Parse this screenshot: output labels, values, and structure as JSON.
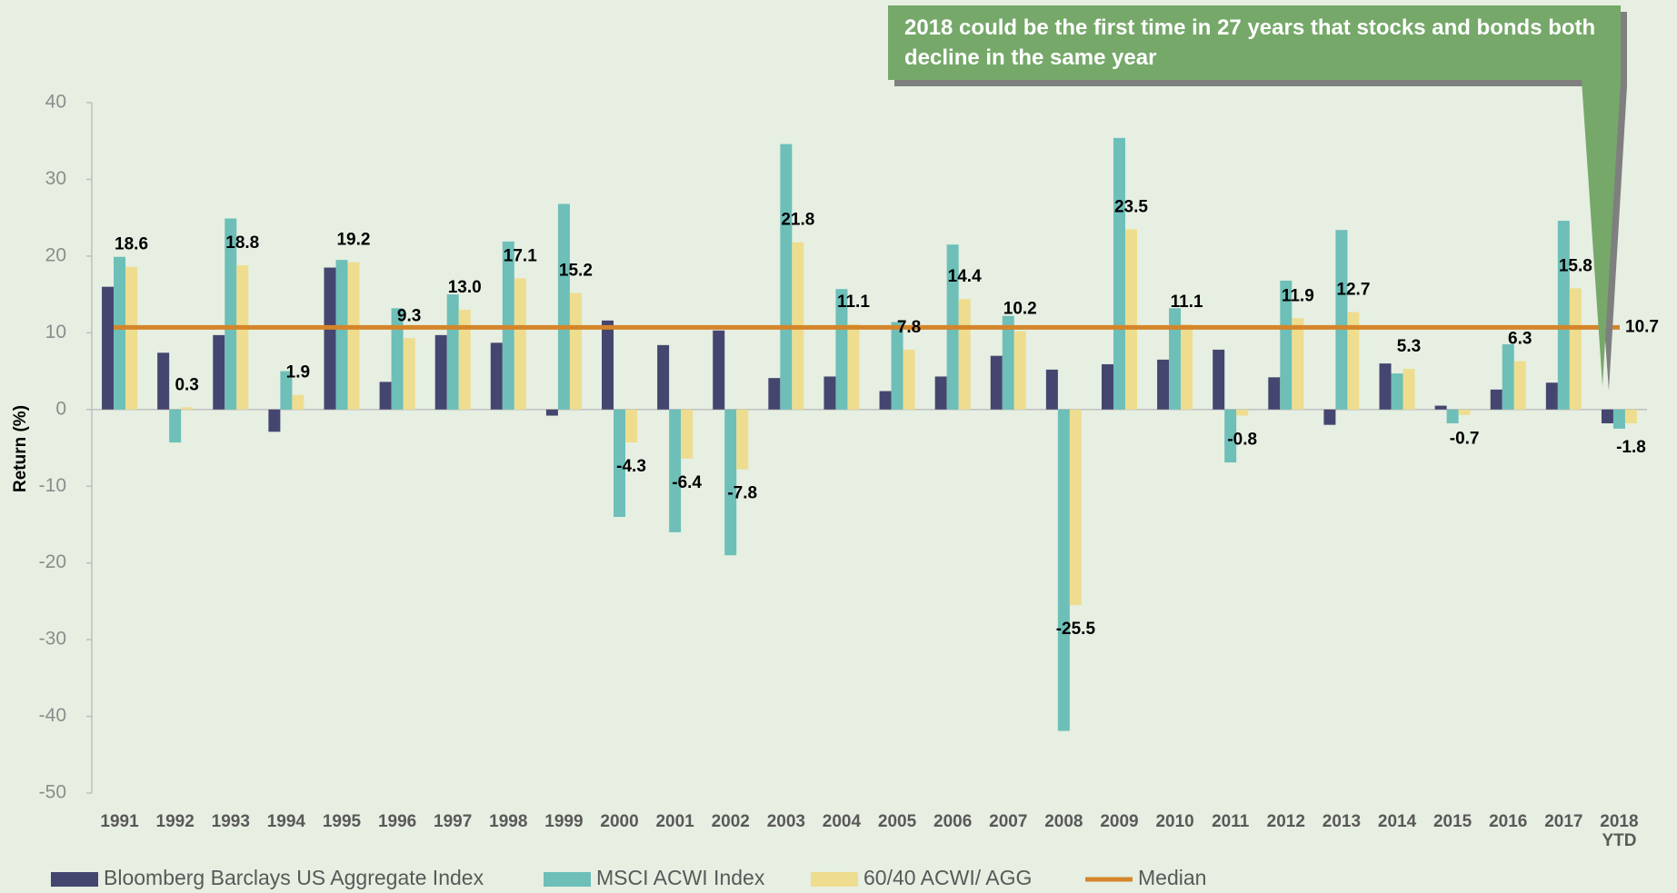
{
  "chart_data": {
    "type": "bar",
    "annotation": "2018 could be the first time in 27 years that stocks and bonds both decline in the same year",
    "y_label": "Return (%)",
    "categories": [
      "1991",
      "1992",
      "1993",
      "1994",
      "1995",
      "1996",
      "1997",
      "1998",
      "1999",
      "2000",
      "2001",
      "2002",
      "2003",
      "2004",
      "2005",
      "2006",
      "2007",
      "2008",
      "2009",
      "2010",
      "2011",
      "2012",
      "2013",
      "2014",
      "2015",
      "2016",
      "2017",
      "2018 YTD"
    ],
    "series": [
      {
        "name": "Bloomberg Barclays US Aggregate Index",
        "color": "#45466f",
        "values": [
          16.0,
          7.4,
          9.7,
          -2.9,
          18.5,
          3.6,
          9.7,
          8.7,
          -0.8,
          11.6,
          8.4,
          10.3,
          4.1,
          4.3,
          2.4,
          4.3,
          7.0,
          5.2,
          5.9,
          6.5,
          7.8,
          4.2,
          -2.0,
          6.0,
          0.5,
          2.6,
          3.5,
          -1.8
        ]
      },
      {
        "name": "MSCI ACWI Index",
        "color": "#6dbfb8",
        "values": [
          19.9,
          -4.3,
          24.9,
          5.0,
          19.5,
          13.2,
          15.0,
          21.9,
          26.8,
          -14.0,
          -16.0,
          -19.0,
          34.6,
          15.7,
          11.4,
          21.5,
          12.2,
          -41.9,
          35.4,
          13.2,
          -6.9,
          16.8,
          23.4,
          4.7,
          -1.8,
          8.5,
          24.6,
          -2.5
        ]
      },
      {
        "name": "60/40 ACWI/ AGG",
        "color": "#eedd8f",
        "values": [
          18.6,
          0.3,
          18.8,
          1.9,
          19.2,
          9.3,
          13.0,
          17.1,
          15.2,
          -4.3,
          -6.4,
          -7.8,
          21.8,
          11.1,
          7.8,
          14.4,
          10.2,
          -25.5,
          23.5,
          11.1,
          -0.8,
          11.9,
          12.7,
          5.3,
          -0.7,
          6.3,
          15.8,
          -1.8
        ],
        "value_labels": [
          "18.6",
          "0.3",
          "18.8",
          "1.9",
          "19.2",
          "9.3",
          "13.0",
          "17.1",
          "15.2",
          "-4.3",
          "-6.4",
          "-7.8",
          "21.8",
          "11.1",
          "7.8",
          "14.4",
          "10.2",
          "-25.5",
          "23.5",
          "11.1",
          "-0.8",
          "11.9",
          "12.7",
          "5.3",
          "-0.7",
          "6.3",
          "15.8",
          "-1.8"
        ]
      }
    ],
    "median": {
      "name": "Median",
      "color": "#d4852a",
      "value": 10.7
    },
    "ylim": [
      -50,
      40
    ],
    "yticks": [
      -50,
      -40,
      -30,
      -20,
      -10,
      0,
      10,
      20,
      30,
      40
    ],
    "legend": "bottom"
  }
}
